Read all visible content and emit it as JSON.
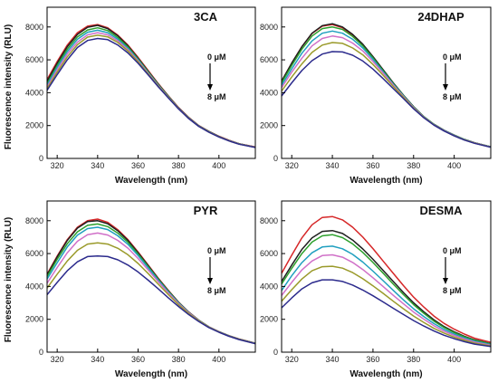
{
  "figure": {
    "ylabel": "Fluorescence intensity (RLU)",
    "xlabel": "Wavelength (nm)"
  },
  "colors": [
    "#d62728",
    "#1f1f1f",
    "#2ca02c",
    "#1f9fbf",
    "#d070c8",
    "#9a9a2a",
    "#2b2a8c"
  ],
  "chart_data": [
    {
      "type": "line",
      "title": "3CA",
      "xlabel": "Wavelength (nm)",
      "ylabel": "Fluorescence intensity (RLU)",
      "xlim": [
        315,
        418
      ],
      "ylim": [
        0,
        9200
      ],
      "xticks": [
        320,
        340,
        360,
        380,
        400
      ],
      "yticks": [
        0,
        2000,
        4000,
        6000,
        8000
      ],
      "annotation": {
        "top": "0 μM",
        "bottom": "8 μM"
      },
      "x": [
        315,
        320,
        325,
        330,
        335,
        340,
        345,
        350,
        355,
        360,
        365,
        370,
        375,
        380,
        385,
        390,
        395,
        400,
        405,
        410,
        418
      ],
      "series": [
        {
          "values": [
            4800,
            5900,
            6900,
            7650,
            8050,
            8150,
            7950,
            7500,
            6900,
            6150,
            5350,
            4550,
            3800,
            3100,
            2500,
            2000,
            1650,
            1350,
            1100,
            900,
            700
          ]
        },
        {
          "values": [
            4700,
            5800,
            6800,
            7550,
            7980,
            8100,
            7900,
            7460,
            6850,
            6100,
            5300,
            4520,
            3780,
            3080,
            2490,
            1990,
            1640,
            1340,
            1090,
            890,
            690
          ]
        },
        {
          "values": [
            4550,
            5650,
            6650,
            7400,
            7820,
            7950,
            7780,
            7350,
            6780,
            6050,
            5260,
            4490,
            3760,
            3060,
            2470,
            1980,
            1630,
            1330,
            1085,
            885,
            685
          ]
        },
        {
          "values": [
            4450,
            5550,
            6500,
            7250,
            7680,
            7800,
            7650,
            7250,
            6700,
            6000,
            5220,
            4460,
            3740,
            3050,
            2460,
            1970,
            1620,
            1320,
            1080,
            880,
            680
          ]
        },
        {
          "values": [
            4350,
            5400,
            6350,
            7080,
            7520,
            7650,
            7520,
            7150,
            6620,
            5940,
            5180,
            4430,
            3720,
            3040,
            2450,
            1960,
            1610,
            1315,
            1075,
            875,
            675
          ]
        },
        {
          "values": [
            4250,
            5250,
            6180,
            6920,
            7380,
            7500,
            7400,
            7050,
            6540,
            5880,
            5140,
            4400,
            3700,
            3030,
            2440,
            1955,
            1605,
            1310,
            1070,
            870,
            670
          ]
        },
        {
          "values": [
            4150,
            5100,
            6000,
            6750,
            7180,
            7300,
            7230,
            6900,
            6420,
            5790,
            5080,
            4360,
            3680,
            3020,
            2430,
            1950,
            1600,
            1305,
            1065,
            865,
            665
          ]
        }
      ]
    },
    {
      "type": "line",
      "title": "24DHAP",
      "xlabel": "Wavelength (nm)",
      "ylabel": "",
      "xlim": [
        315,
        418
      ],
      "ylim": [
        0,
        9200
      ],
      "xticks": [
        320,
        340,
        360,
        380,
        400
      ],
      "yticks": [
        0,
        2000,
        4000,
        6000,
        8000
      ],
      "annotation": {
        "top": "0 μM",
        "bottom": "8 μM"
      },
      "x": [
        315,
        320,
        325,
        330,
        335,
        340,
        345,
        350,
        355,
        360,
        365,
        370,
        375,
        380,
        385,
        390,
        395,
        400,
        405,
        410,
        418
      ],
      "series": [
        {
          "values": [
            4700,
            5800,
            6800,
            7600,
            8050,
            8150,
            7950,
            7500,
            6900,
            6150,
            5350,
            4550,
            3800,
            3100,
            2500,
            2050,
            1700,
            1400,
            1150,
            950,
            700
          ]
        },
        {
          "values": [
            4700,
            5800,
            6800,
            7620,
            8080,
            8200,
            8000,
            7550,
            6950,
            6200,
            5400,
            4600,
            3850,
            3150,
            2550,
            2080,
            1720,
            1420,
            1160,
            960,
            710
          ]
        },
        {
          "values": [
            4600,
            5650,
            6650,
            7450,
            7900,
            8000,
            7850,
            7420,
            6850,
            6120,
            5330,
            4550,
            3830,
            3130,
            2540,
            2070,
            1710,
            1410,
            1155,
            955,
            705
          ]
        },
        {
          "values": [
            4450,
            5450,
            6400,
            7150,
            7620,
            7750,
            7620,
            7250,
            6720,
            6030,
            5270,
            4510,
            3800,
            3110,
            2530,
            2060,
            1700,
            1400,
            1150,
            950,
            700
          ]
        },
        {
          "values": [
            4300,
            5250,
            6100,
            6850,
            7300,
            7450,
            7350,
            7020,
            6540,
            5900,
            5190,
            4460,
            3770,
            3090,
            2520,
            2050,
            1690,
            1390,
            1140,
            940,
            695
          ]
        },
        {
          "values": [
            4100,
            4950,
            5750,
            6450,
            6900,
            7050,
            7000,
            6720,
            6300,
            5720,
            5060,
            4380,
            3720,
            3060,
            2500,
            2040,
            1680,
            1380,
            1130,
            930,
            690
          ]
        },
        {
          "values": [
            3800,
            4600,
            5350,
            5950,
            6350,
            6500,
            6480,
            6280,
            5930,
            5440,
            4860,
            4250,
            3640,
            3020,
            2480,
            2030,
            1670,
            1370,
            1120,
            920,
            685
          ]
        }
      ]
    },
    {
      "type": "line",
      "title": "PYR",
      "xlabel": "Wavelength (nm)",
      "ylabel": "Fluorescence intensity (RLU)",
      "xlim": [
        315,
        418
      ],
      "ylim": [
        0,
        9200
      ],
      "xticks": [
        320,
        340,
        360,
        380,
        400
      ],
      "yticks": [
        0,
        2000,
        4000,
        6000,
        8000
      ],
      "annotation": {
        "top": "0 μM",
        "bottom": "8 μM"
      },
      "x": [
        315,
        320,
        325,
        330,
        335,
        340,
        345,
        350,
        355,
        360,
        365,
        370,
        375,
        380,
        385,
        390,
        395,
        400,
        405,
        410,
        418
      ],
      "series": [
        {
          "values": [
            4750,
            5850,
            6850,
            7600,
            8000,
            8100,
            7900,
            7450,
            6850,
            6100,
            5300,
            4500,
            3750,
            3050,
            2450,
            1950,
            1550,
            1250,
            1000,
            800,
            550
          ]
        },
        {
          "values": [
            4700,
            5800,
            6800,
            7550,
            7950,
            8000,
            7820,
            7380,
            6800,
            6050,
            5260,
            4470,
            3730,
            3040,
            2440,
            1945,
            1545,
            1245,
            995,
            795,
            545
          ]
        },
        {
          "values": [
            4600,
            5650,
            6600,
            7320,
            7720,
            7800,
            7640,
            7240,
            6690,
            5970,
            5200,
            4430,
            3700,
            3020,
            2430,
            1940,
            1540,
            1240,
            990,
            790,
            540
          ]
        },
        {
          "values": [
            4450,
            5450,
            6400,
            7120,
            7520,
            7600,
            7460,
            7080,
            6560,
            5880,
            5130,
            4380,
            3660,
            3000,
            2420,
            1935,
            1535,
            1235,
            985,
            785,
            535
          ]
        },
        {
          "values": [
            4200,
            5150,
            6050,
            6750,
            7150,
            7250,
            7130,
            6800,
            6330,
            5700,
            5000,
            4290,
            3600,
            2960,
            2400,
            1925,
            1530,
            1230,
            980,
            780,
            530
          ]
        },
        {
          "values": [
            3900,
            4750,
            5550,
            6200,
            6580,
            6650,
            6580,
            6320,
            5930,
            5400,
            4780,
            4140,
            3500,
            2900,
            2360,
            1905,
            1520,
            1225,
            975,
            775,
            525
          ]
        },
        {
          "values": [
            3500,
            4250,
            4950,
            5500,
            5820,
            5850,
            5820,
            5620,
            5300,
            4880,
            4380,
            3850,
            3300,
            2780,
            2290,
            1870,
            1500,
            1210,
            965,
            765,
            515
          ]
        }
      ]
    },
    {
      "type": "line",
      "title": "DESMA",
      "xlabel": "Wavelength (nm)",
      "ylabel": "",
      "xlim": [
        315,
        418
      ],
      "ylim": [
        0,
        9200
      ],
      "xticks": [
        320,
        340,
        360,
        380,
        400
      ],
      "yticks": [
        0,
        2000,
        4000,
        6000,
        8000
      ],
      "annotation": {
        "top": "0 μM",
        "bottom": "8 μM"
      },
      "x": [
        315,
        320,
        325,
        330,
        335,
        340,
        345,
        350,
        355,
        360,
        365,
        370,
        375,
        380,
        385,
        390,
        395,
        400,
        405,
        410,
        418
      ],
      "series": [
        {
          "values": [
            4800,
            5900,
            6950,
            7750,
            8200,
            8250,
            8050,
            7600,
            7000,
            6300,
            5550,
            4800,
            4050,
            3350,
            2750,
            2200,
            1750,
            1400,
            1100,
            850,
            600
          ]
        },
        {
          "values": [
            4300,
            5300,
            6250,
            6950,
            7350,
            7400,
            7220,
            6820,
            6280,
            5650,
            4980,
            4300,
            3630,
            3000,
            2460,
            1970,
            1560,
            1240,
            970,
            750,
            520
          ]
        },
        {
          "values": [
            4150,
            5100,
            6000,
            6700,
            7080,
            7150,
            6970,
            6590,
            6070,
            5460,
            4810,
            4150,
            3500,
            2890,
            2370,
            1890,
            1500,
            1190,
            930,
            720,
            500
          ]
        },
        {
          "values": [
            3750,
            4650,
            5450,
            6050,
            6400,
            6450,
            6290,
            5950,
            5480,
            4930,
            4350,
            3760,
            3180,
            2640,
            2170,
            1740,
            1380,
            1100,
            860,
            660,
            460
          ]
        },
        {
          "values": [
            3450,
            4250,
            5000,
            5550,
            5880,
            5920,
            5780,
            5460,
            5030,
            4530,
            4000,
            3460,
            2940,
            2440,
            2010,
            1610,
            1280,
            1020,
            800,
            610,
            420
          ]
        },
        {
          "values": [
            3100,
            3800,
            4450,
            4950,
            5200,
            5230,
            5110,
            4840,
            4470,
            4040,
            3580,
            3100,
            2640,
            2200,
            1810,
            1450,
            1160,
            920,
            720,
            550,
            380
          ]
        },
        {
          "values": [
            2700,
            3300,
            3850,
            4220,
            4400,
            4400,
            4300,
            4080,
            3780,
            3430,
            3060,
            2670,
            2290,
            1920,
            1590,
            1290,
            1030,
            820,
            640,
            490,
            340
          ]
        }
      ]
    }
  ]
}
